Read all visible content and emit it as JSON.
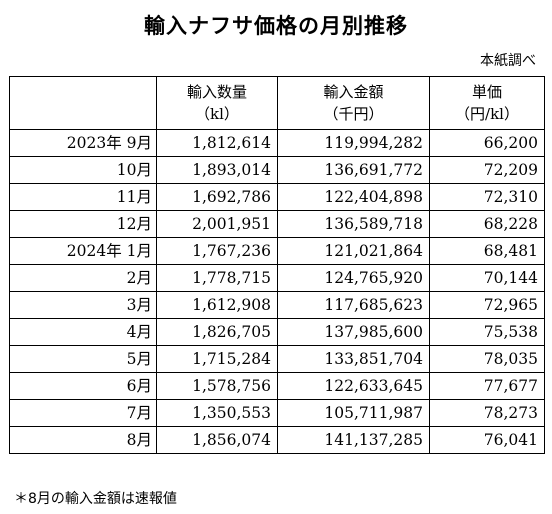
{
  "title": "輸入ナフサ価格の月別推移",
  "source": "本紙調べ",
  "table": {
    "headers": [
      {
        "label": "輸入数量",
        "unit": "（kl）"
      },
      {
        "label": "輸入金額",
        "unit": "（千円）"
      },
      {
        "label": "単価",
        "unit": "（円/kl）"
      }
    ],
    "rows": [
      {
        "period": "2023年  9月",
        "volume": "1,812,614",
        "amount": "119,994,282",
        "unit_price": "66,200"
      },
      {
        "period": "10月",
        "volume": "1,893,014",
        "amount": "136,691,772",
        "unit_price": "72,209"
      },
      {
        "period": "11月",
        "volume": "1,692,786",
        "amount": "122,404,898",
        "unit_price": "72,310"
      },
      {
        "period": "12月",
        "volume": "2,001,951",
        "amount": "136,589,718",
        "unit_price": "68,228"
      },
      {
        "period": "2024年  1月",
        "volume": "1,767,236",
        "amount": "121,021,864",
        "unit_price": "68,481"
      },
      {
        "period": "2月",
        "volume": "1,778,715",
        "amount": "124,765,920",
        "unit_price": "70,144"
      },
      {
        "period": "3月",
        "volume": "1,612,908",
        "amount": "117,685,623",
        "unit_price": "72,965"
      },
      {
        "period": "4月",
        "volume": "1,826,705",
        "amount": "137,985,600",
        "unit_price": "75,538"
      },
      {
        "period": "5月",
        "volume": "1,715,284",
        "amount": "133,851,704",
        "unit_price": "78,035"
      },
      {
        "period": "6月",
        "volume": "1,578,756",
        "amount": "122,633,645",
        "unit_price": "77,677"
      },
      {
        "period": "7月",
        "volume": "1,350,553",
        "amount": "105,711,987",
        "unit_price": "78,273"
      },
      {
        "period": "8月",
        "volume": "1,856,074",
        "amount": "141,137,285",
        "unit_price": "76,041"
      }
    ]
  },
  "note": "＊8月の輸入金額は速報値"
}
